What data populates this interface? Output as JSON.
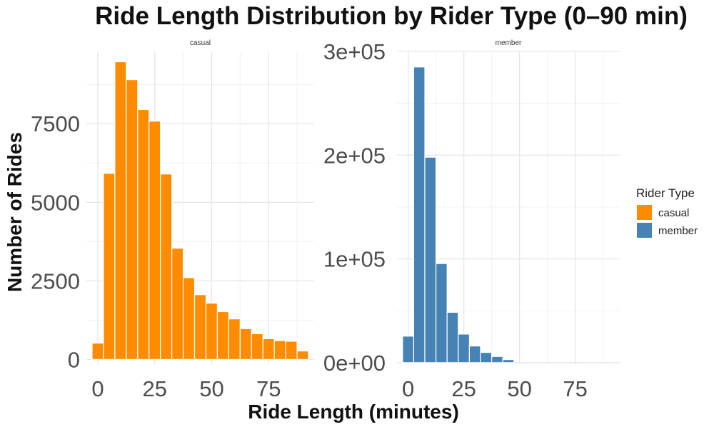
{
  "chart_data": {
    "type": "bar",
    "title": "Ride Length Distribution by Rider Type (0–90 min)",
    "xlabel": "Ride Length (minutes)",
    "ylabel": "Number of Rides",
    "grid": true,
    "legend": {
      "title": "Rider Type",
      "position": "right",
      "entries": [
        {
          "label": "casual",
          "color": "#FF8C00"
        },
        {
          "label": "member",
          "color": "#4682B4"
        }
      ]
    },
    "bin_width": 5,
    "x": [
      0,
      5,
      10,
      15,
      20,
      25,
      30,
      35,
      40,
      45,
      50,
      55,
      60,
      65,
      70,
      75,
      80,
      85,
      90
    ],
    "panels": [
      {
        "strip": "casual",
        "color": "#FF8C00",
        "xlim": [
          -5,
          95
        ],
        "ylim": [
          -150,
          9800
        ],
        "y_ticks": [
          0,
          2500,
          5000,
          7500
        ],
        "y_tick_labels": [
          "0",
          "2500",
          "5000",
          "7500"
        ],
        "x_ticks": [
          0,
          25,
          50,
          75
        ],
        "x_tick_labels": [
          "0",
          "25",
          "50",
          "75"
        ],
        "values": [
          520,
          5920,
          9470,
          8900,
          7950,
          7580,
          5900,
          3540,
          2600,
          2060,
          1790,
          1520,
          1290,
          980,
          820,
          660,
          600,
          580,
          270
        ]
      },
      {
        "strip": "member",
        "color": "#4682B4",
        "xlim": [
          -5,
          95
        ],
        "ylim": [
          -1500,
          300000
        ],
        "y_ticks": [
          0,
          100000,
          200000,
          300000
        ],
        "y_tick_labels": [
          "0e+00",
          "1e+05",
          "2e+05",
          "3e+05"
        ],
        "x_ticks": [
          0,
          25,
          50,
          75
        ],
        "x_tick_labels": [
          "0",
          "25",
          "50",
          "75"
        ],
        "values": [
          25500,
          285000,
          198000,
          95500,
          48500,
          27500,
          16000,
          9800,
          5900,
          2900,
          0,
          0,
          0,
          0,
          0,
          0,
          0,
          0,
          0
        ]
      }
    ]
  }
}
